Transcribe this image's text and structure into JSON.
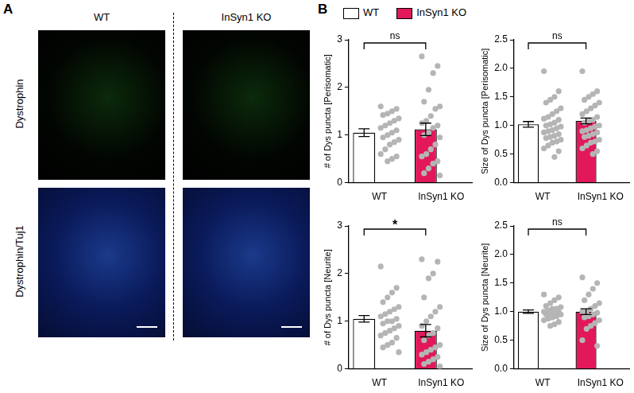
{
  "panel_labels": [
    "A",
    "B"
  ],
  "images": {
    "columns": [
      "WT",
      "InSyn1 KO"
    ],
    "rows": [
      "Dystrophin",
      "Dystrophin/Tuj1"
    ]
  },
  "legend_entries": [
    {
      "name": "WT",
      "color": "#ffffff"
    },
    {
      "name": "InSyn1 KO",
      "color": "#e2185a"
    }
  ],
  "chart_data": [
    {
      "type": "bar",
      "ylabel": "# of Dys puncta [Perisomatic]",
      "categories": [
        "WT",
        "InSyn1 KO"
      ],
      "values": [
        1.05,
        1.12
      ],
      "errors": [
        0.08,
        0.13
      ],
      "colors": [
        "#ffffff",
        "#e2185a"
      ],
      "points": [
        [
          1.6,
          1.55,
          1.5,
          1.45,
          1.42,
          1.35,
          1.3,
          1.25,
          1.2,
          1.15,
          1.1,
          1.05,
          1.0,
          0.95,
          0.9,
          0.85,
          0.8,
          0.7,
          0.6,
          0.55,
          0.5,
          0.45
        ],
        [
          2.65,
          2.45,
          2.3,
          1.95,
          1.7,
          1.6,
          1.55,
          1.4,
          1.3,
          1.25,
          1.2,
          1.15,
          1.05,
          1.0,
          0.95,
          0.8,
          0.7,
          0.6,
          0.55,
          0.45,
          0.4,
          0.3,
          0.2,
          0.15
        ]
      ],
      "ylim": [
        0,
        3
      ],
      "yticks": [
        0,
        1,
        2,
        3
      ],
      "grid": false,
      "annotation": "ns"
    },
    {
      "type": "bar",
      "ylabel": "Size of Dys puncta [Perisomatic]",
      "categories": [
        "WT",
        "InSyn1 KO"
      ],
      "values": [
        1.02,
        1.08
      ],
      "errors": [
        0.05,
        0.05
      ],
      "colors": [
        "#ffffff",
        "#e2185a"
      ],
      "points": [
        [
          1.95,
          1.6,
          1.5,
          1.45,
          1.4,
          1.3,
          1.25,
          1.2,
          1.15,
          1.12,
          1.1,
          1.05,
          1.02,
          1.0,
          0.98,
          0.95,
          0.92,
          0.9,
          0.88,
          0.85,
          0.82,
          0.8,
          0.78,
          0.75,
          0.72,
          0.7,
          0.65,
          0.6,
          0.55,
          0.45
        ],
        [
          1.95,
          1.6,
          1.55,
          1.5,
          1.45,
          1.4,
          1.35,
          1.3,
          1.25,
          1.2,
          1.15,
          1.1,
          1.08,
          1.05,
          1.0,
          0.98,
          0.95,
          0.92,
          0.9,
          0.88,
          0.85,
          0.82,
          0.8,
          0.75,
          0.72,
          0.7,
          0.65,
          0.6,
          0.55,
          0.5
        ]
      ],
      "ylim": [
        0,
        2.5
      ],
      "yticks": [
        {
          "value": 0,
          "label": "0.0"
        },
        {
          "value": 0.5,
          "label": "0.5"
        },
        {
          "value": 1,
          "label": "1.0"
        },
        {
          "value": 1.5,
          "label": "1.5"
        },
        {
          "value": 2,
          "label": "2.0"
        },
        {
          "value": 2.5,
          "label": "2.5"
        }
      ],
      "grid": false,
      "annotation": "ns"
    },
    {
      "type": "bar",
      "ylabel": "# of Dys puncta [Neurite]",
      "categories": [
        "WT",
        "InSyn1 KO"
      ],
      "values": [
        1.05,
        0.8
      ],
      "errors": [
        0.07,
        0.13
      ],
      "colors": [
        "#ffffff",
        "#e2185a"
      ],
      "points": [
        [
          2.15,
          1.7,
          1.6,
          1.5,
          1.4,
          1.3,
          1.25,
          1.2,
          1.15,
          1.1,
          1.05,
          1.0,
          1.0,
          0.95,
          0.9,
          0.85,
          0.8,
          0.75,
          0.7,
          0.65,
          0.55,
          0.5,
          0.45,
          0.35
        ],
        [
          2.3,
          2.25,
          2.0,
          1.9,
          1.5,
          1.3,
          1.2,
          1.1,
          1.0,
          0.9,
          0.85,
          0.75,
          0.7,
          0.6,
          0.5,
          0.45,
          0.4,
          0.35,
          0.3,
          0.25,
          0.2,
          0.15,
          0.1,
          0.05
        ]
      ],
      "ylim": [
        0,
        3
      ],
      "yticks": [
        0,
        1,
        2,
        3
      ],
      "grid": false,
      "annotation": "*"
    },
    {
      "type": "bar",
      "ylabel": "Size of Dys puncta [Neurite]",
      "categories": [
        "WT",
        "InSyn1 KO"
      ],
      "values": [
        1.0,
        1.0
      ],
      "errors": [
        0.03,
        0.05
      ],
      "colors": [
        "#ffffff",
        "#e2185a"
      ],
      "points": [
        [
          1.3,
          1.25,
          1.2,
          1.15,
          1.1,
          1.08,
          1.05,
          1.05,
          1.02,
          1.0,
          1.0,
          0.98,
          0.97,
          0.95,
          0.95,
          0.92,
          0.9,
          0.88,
          0.85,
          0.82,
          0.78,
          0.75
        ],
        [
          1.6,
          1.5,
          1.4,
          1.3,
          1.2,
          1.15,
          1.1,
          1.05,
          1.0,
          1.0,
          0.98,
          0.95,
          0.92,
          0.9,
          0.85,
          0.8,
          0.75,
          0.7,
          0.5,
          0.4
        ]
      ],
      "ylim": [
        0,
        2.5
      ],
      "yticks": [
        {
          "value": 0,
          "label": "0.0"
        },
        {
          "value": 0.5,
          "label": "0.5"
        },
        {
          "value": 1,
          "label": "1.0"
        },
        {
          "value": 1.5,
          "label": "1.5"
        },
        {
          "value": 2,
          "label": "2.0"
        },
        {
          "value": 2.5,
          "label": "2.5"
        }
      ],
      "grid": false,
      "annotation": "ns"
    }
  ]
}
